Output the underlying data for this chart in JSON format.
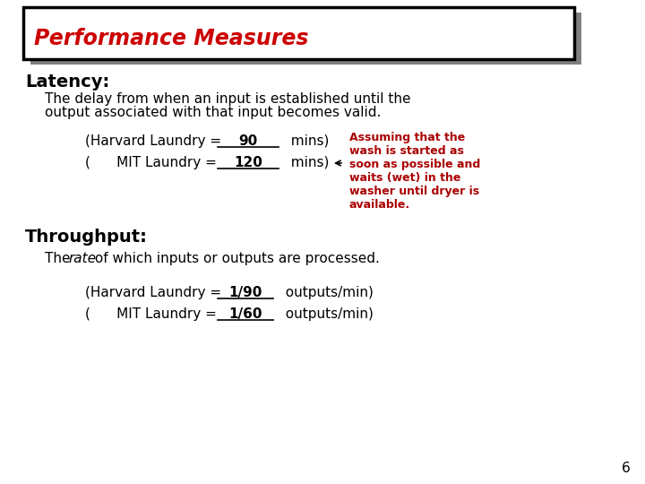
{
  "title": "Performance Measures",
  "title_color": "#cc0000",
  "bg_color": "#ffffff",
  "shadow_color": "#888888",
  "latency_label": "Latency:",
  "latency_desc1": "The delay from when an input is established until the",
  "latency_desc2": "output associated with that input becomes valid.",
  "harvard_latency_pre": "(Harvard Laundry = ",
  "harvard_latency_val": "90",
  "harvard_latency_post": "  mins)",
  "mit_latency_pre": "(      MIT Laundry = ",
  "mit_latency_val": "120",
  "mit_latency_post": "  mins)",
  "throughput_label": "Throughput:",
  "throughput_pre": "The ",
  "throughput_italic": "rate",
  "throughput_post": " of which inputs or outputs are processed.",
  "harvard_tp_pre": "(Harvard Laundry = ",
  "harvard_tp_val": "1/90",
  "harvard_tp_post": "  outputs/min)",
  "mit_tp_pre": "(      MIT Laundry = ",
  "mit_tp_val": "1/60",
  "mit_tp_post": "  outputs/min)",
  "annotation_lines": [
    "Assuming that the",
    "wash is started as",
    "soon as possible and",
    "waits (wet) in the",
    "washer until dryer is",
    "available."
  ],
  "annotation_color": "#aa0000",
  "page_number": "6",
  "header_box_color": "#000000",
  "header_shadow_color": "#808080",
  "title_fontsize": 17,
  "heading_fontsize": 14,
  "body_fontsize": 11,
  "annot_fontsize": 9
}
